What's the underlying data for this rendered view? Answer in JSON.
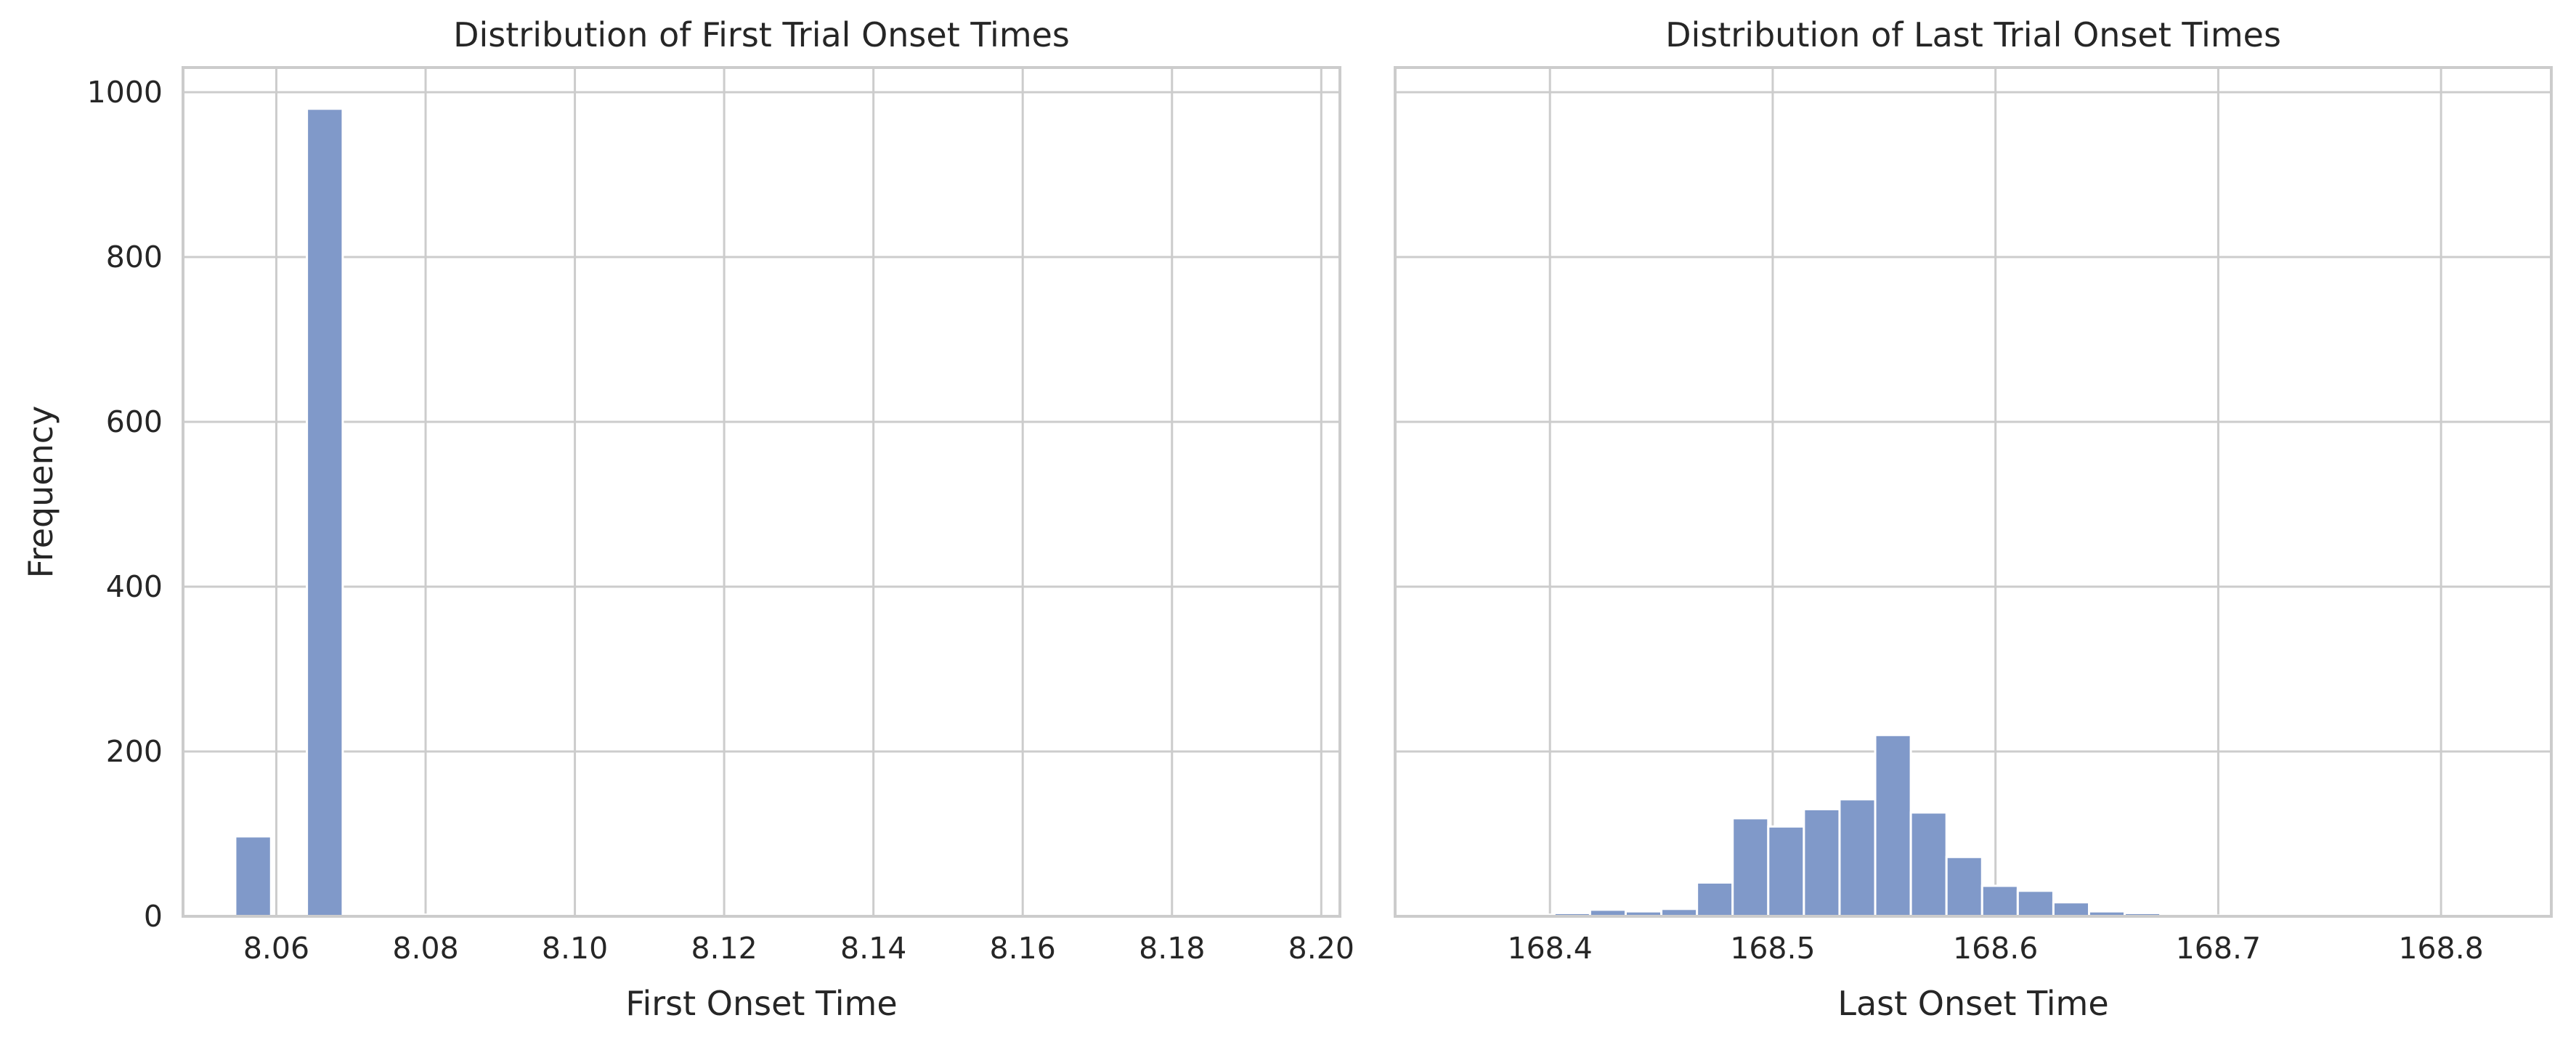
{
  "chart_data": [
    {
      "type": "bar",
      "title": "Distribution of First Trial Onset Times",
      "xlabel": "First Onset Time",
      "ylabel": "Frequency",
      "xlim": [
        8.0475,
        8.2025
      ],
      "ylim": [
        0,
        1030
      ],
      "xticks": [
        "8.06",
        "8.08",
        "8.10",
        "8.12",
        "8.14",
        "8.16",
        "8.18",
        "8.20"
      ],
      "yticks": [
        "0",
        "200",
        "400",
        "600",
        "800",
        "1000"
      ],
      "grid": true,
      "bins": [
        {
          "x0": 8.0545,
          "x1": 8.0593,
          "value": 97
        },
        {
          "x0": 8.0593,
          "x1": 8.0641,
          "value": 0
        },
        {
          "x0": 8.0641,
          "x1": 8.0689,
          "value": 980
        },
        {
          "x0": 8.0689,
          "x1": 8.0737,
          "value": 0
        },
        {
          "x0": 8.0737,
          "x1": 8.0785,
          "value": 0
        },
        {
          "x0": 8.0785,
          "x1": 8.0833,
          "value": 2
        },
        {
          "x0": 8.0833,
          "x1": 8.0881,
          "value": 1
        },
        {
          "x0": 8.0881,
          "x1": 8.0929,
          "value": 0
        },
        {
          "x0": 8.0929,
          "x1": 8.0977,
          "value": 0
        },
        {
          "x0": 8.0977,
          "x1": 8.1025,
          "value": 0
        },
        {
          "x0": 8.1025,
          "x1": 8.1073,
          "value": 0
        },
        {
          "x0": 8.1073,
          "x1": 8.1121,
          "value": 0
        },
        {
          "x0": 8.1121,
          "x1": 8.1169,
          "value": 0
        },
        {
          "x0": 8.1169,
          "x1": 8.1217,
          "value": 0
        },
        {
          "x0": 8.1217,
          "x1": 8.1265,
          "value": 0
        },
        {
          "x0": 8.1265,
          "x1": 8.1313,
          "value": 0
        },
        {
          "x0": 8.1313,
          "x1": 8.1361,
          "value": 0
        },
        {
          "x0": 8.1361,
          "x1": 8.1409,
          "value": 0
        },
        {
          "x0": 8.1409,
          "x1": 8.1457,
          "value": 0
        },
        {
          "x0": 8.1457,
          "x1": 8.1505,
          "value": 0
        },
        {
          "x0": 8.1505,
          "x1": 8.1553,
          "value": 0
        },
        {
          "x0": 8.1553,
          "x1": 8.1601,
          "value": 0
        },
        {
          "x0": 8.1601,
          "x1": 8.1649,
          "value": 0
        },
        {
          "x0": 8.1649,
          "x1": 8.1697,
          "value": 0
        },
        {
          "x0": 8.1697,
          "x1": 8.1745,
          "value": 0
        },
        {
          "x0": 8.1745,
          "x1": 8.1793,
          "value": 0
        },
        {
          "x0": 8.1793,
          "x1": 8.1841,
          "value": 0
        },
        {
          "x0": 8.1841,
          "x1": 8.1889,
          "value": 0
        },
        {
          "x0": 8.1889,
          "x1": 8.1937,
          "value": 0
        },
        {
          "x0": 8.1937,
          "x1": 8.1985,
          "value": 1
        }
      ]
    },
    {
      "type": "bar",
      "title": "Distribution of Last Trial Onset Times",
      "xlabel": "Last Onset Time",
      "ylabel": "",
      "xlim": [
        168.3305,
        168.8495
      ],
      "ylim": [
        0,
        1030
      ],
      "xticks": [
        "168.4",
        "168.5",
        "168.6",
        "168.7",
        "168.8"
      ],
      "yticks": [
        "0",
        "200",
        "400",
        "600",
        "800",
        "1000"
      ],
      "grid": true,
      "bins": [
        {
          "x0": 168.354,
          "x1": 168.37,
          "value": 1
        },
        {
          "x0": 168.37,
          "x1": 168.386,
          "value": 1
        },
        {
          "x0": 168.386,
          "x1": 168.402,
          "value": 2
        },
        {
          "x0": 168.402,
          "x1": 168.418,
          "value": 4
        },
        {
          "x0": 168.418,
          "x1": 168.434,
          "value": 8
        },
        {
          "x0": 168.434,
          "x1": 168.45,
          "value": 6
        },
        {
          "x0": 168.45,
          "x1": 168.466,
          "value": 9
        },
        {
          "x0": 168.466,
          "x1": 168.482,
          "value": 41
        },
        {
          "x0": 168.482,
          "x1": 168.498,
          "value": 119
        },
        {
          "x0": 168.498,
          "x1": 168.514,
          "value": 109
        },
        {
          "x0": 168.514,
          "x1": 168.53,
          "value": 130
        },
        {
          "x0": 168.53,
          "x1": 168.546,
          "value": 142
        },
        {
          "x0": 168.546,
          "x1": 168.562,
          "value": 220
        },
        {
          "x0": 168.562,
          "x1": 168.578,
          "value": 126
        },
        {
          "x0": 168.578,
          "x1": 168.594,
          "value": 72
        },
        {
          "x0": 168.594,
          "x1": 168.61,
          "value": 37
        },
        {
          "x0": 168.61,
          "x1": 168.626,
          "value": 31
        },
        {
          "x0": 168.626,
          "x1": 168.642,
          "value": 17
        },
        {
          "x0": 168.642,
          "x1": 168.658,
          "value": 6
        },
        {
          "x0": 168.658,
          "x1": 168.674,
          "value": 4
        },
        {
          "x0": 168.674,
          "x1": 168.69,
          "value": 1
        },
        {
          "x0": 168.69,
          "x1": 168.706,
          "value": 1
        },
        {
          "x0": 168.706,
          "x1": 168.722,
          "value": 1
        },
        {
          "x0": 168.722,
          "x1": 168.738,
          "value": 1
        },
        {
          "x0": 168.738,
          "x1": 168.754,
          "value": 0
        },
        {
          "x0": 168.754,
          "x1": 168.77,
          "value": 0
        },
        {
          "x0": 168.77,
          "x1": 168.786,
          "value": 0
        },
        {
          "x0": 168.786,
          "x1": 168.802,
          "value": 0
        },
        {
          "x0": 168.802,
          "x1": 168.818,
          "value": 0
        },
        {
          "x0": 168.818,
          "x1": 168.834,
          "value": 1
        }
      ]
    }
  ],
  "colors": {
    "bar_fill": "#8099c9",
    "bar_edge": "#ffffff",
    "grid": "#cccccc",
    "spine": "#cccccc",
    "background": "#ffffff"
  }
}
